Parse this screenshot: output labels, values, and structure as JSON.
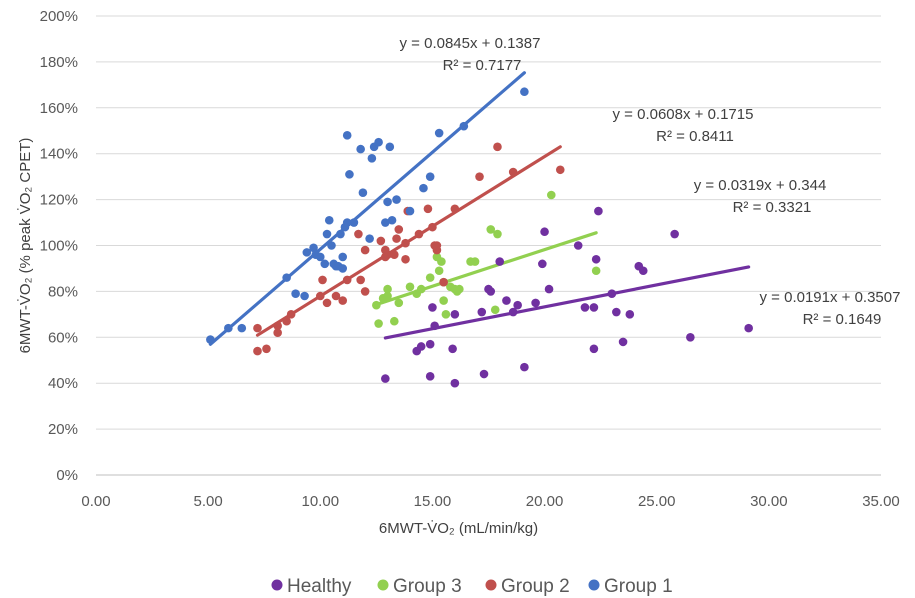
{
  "chart_data": {
    "type": "scatter",
    "xlabel": "6MWT-V̇O₂ (mL/min/kg)",
    "ylabel": "6MWT-V̇O₂ (% peak V̇O₂ CPET)",
    "xlim": [
      0,
      35
    ],
    "ylim": [
      0,
      2
    ],
    "x_ticks": [
      "0.00",
      "5.00",
      "10.00",
      "15.00",
      "20.00",
      "25.00",
      "30.00",
      "35.00"
    ],
    "y_ticks": [
      "0%",
      "20%",
      "40%",
      "60%",
      "80%",
      "100%",
      "120%",
      "140%",
      "160%",
      "180%",
      "200%"
    ],
    "grid": "horizontal",
    "legend_position": "bottom",
    "series": [
      {
        "name": "Healthy",
        "color": "#7030A0",
        "trendline": {
          "slope": 0.0191,
          "intercept": 0.3507,
          "x_range": [
            12.9,
            29.1
          ],
          "equation": "y = 0.0191x + 0.3507",
          "r2": "R² = 0.1649"
        },
        "points": [
          [
            12.9,
            0.42
          ],
          [
            14.3,
            0.54
          ],
          [
            14.5,
            0.56
          ],
          [
            14.9,
            0.57
          ],
          [
            15.1,
            0.65
          ],
          [
            15.0,
            0.73
          ],
          [
            15.9,
            0.55
          ],
          [
            16.0,
            0.7
          ],
          [
            14.9,
            0.43
          ],
          [
            16.0,
            0.4
          ],
          [
            17.2,
            0.71
          ],
          [
            17.3,
            0.44
          ],
          [
            17.5,
            0.81
          ],
          [
            17.6,
            0.8
          ],
          [
            18.0,
            0.93
          ],
          [
            18.3,
            0.76
          ],
          [
            18.6,
            0.71
          ],
          [
            18.8,
            0.74
          ],
          [
            19.1,
            0.47
          ],
          [
            19.6,
            0.75
          ],
          [
            20.0,
            1.06
          ],
          [
            20.2,
            0.81
          ],
          [
            19.9,
            0.92
          ],
          [
            21.5,
            1.0
          ],
          [
            21.8,
            0.73
          ],
          [
            22.3,
            0.94
          ],
          [
            22.4,
            1.15
          ],
          [
            22.2,
            0.73
          ],
          [
            22.2,
            0.55
          ],
          [
            23.0,
            0.79
          ],
          [
            23.2,
            0.71
          ],
          [
            23.5,
            0.58
          ],
          [
            23.8,
            0.7
          ],
          [
            24.2,
            0.91
          ],
          [
            24.4,
            0.89
          ],
          [
            25.8,
            1.05
          ],
          [
            26.5,
            0.6
          ],
          [
            29.1,
            0.64
          ]
        ]
      },
      {
        "name": "Group 3",
        "color": "#92D050",
        "trendline": {
          "slope": 0.0319,
          "intercept": 0.344,
          "x_range": [
            12.5,
            22.3
          ],
          "equation": "y = 0.0319x + 0.344",
          "r2": "R² = 0.3321"
        },
        "points": [
          [
            12.5,
            0.74
          ],
          [
            12.6,
            0.66
          ],
          [
            12.8,
            0.77
          ],
          [
            13.0,
            0.81
          ],
          [
            13.0,
            0.78
          ],
          [
            13.3,
            0.67
          ],
          [
            13.5,
            0.75
          ],
          [
            14.0,
            0.82
          ],
          [
            14.3,
            0.79
          ],
          [
            14.5,
            0.81
          ],
          [
            14.9,
            0.86
          ],
          [
            15.2,
            0.95
          ],
          [
            15.3,
            0.89
          ],
          [
            15.4,
            0.93
          ],
          [
            15.5,
            0.84
          ],
          [
            15.5,
            0.76
          ],
          [
            15.6,
            0.7
          ],
          [
            15.8,
            0.82
          ],
          [
            16.0,
            0.81
          ],
          [
            16.1,
            0.8
          ],
          [
            16.2,
            0.81
          ],
          [
            16.7,
            0.93
          ],
          [
            16.9,
            0.93
          ],
          [
            17.6,
            1.07
          ],
          [
            17.8,
            0.72
          ],
          [
            17.9,
            1.05
          ],
          [
            20.3,
            1.22
          ],
          [
            22.3,
            0.89
          ]
        ]
      },
      {
        "name": "Group 2",
        "color": "#C0504D",
        "trendline": {
          "slope": 0.0608,
          "intercept": 0.1715,
          "x_range": [
            7.2,
            20.7
          ],
          "equation": "y = 0.0608x + 0.1715",
          "r2": "R² = 0.8411"
        },
        "points": [
          [
            7.2,
            0.54
          ],
          [
            7.2,
            0.64
          ],
          [
            7.6,
            0.55
          ],
          [
            8.1,
            0.65
          ],
          [
            8.1,
            0.62
          ],
          [
            8.5,
            0.67
          ],
          [
            8.7,
            0.7
          ],
          [
            10.0,
            0.78
          ],
          [
            10.1,
            0.85
          ],
          [
            10.3,
            0.75
          ],
          [
            10.7,
            0.78
          ],
          [
            11.0,
            0.76
          ],
          [
            11.2,
            0.85
          ],
          [
            11.7,
            1.05
          ],
          [
            11.8,
            0.85
          ],
          [
            12.0,
            0.8
          ],
          [
            12.0,
            0.98
          ],
          [
            12.7,
            1.02
          ],
          [
            12.9,
            0.95
          ],
          [
            12.9,
            0.98
          ],
          [
            13.0,
            0.96
          ],
          [
            13.3,
            0.96
          ],
          [
            13.4,
            1.03
          ],
          [
            13.5,
            1.07
          ],
          [
            13.8,
            1.01
          ],
          [
            13.8,
            0.94
          ],
          [
            13.9,
            1.15
          ],
          [
            14.4,
            1.05
          ],
          [
            14.8,
            1.16
          ],
          [
            15.0,
            1.08
          ],
          [
            15.1,
            1.0
          ],
          [
            15.2,
            0.98
          ],
          [
            15.2,
            1.0
          ],
          [
            15.5,
            0.84
          ],
          [
            16.0,
            1.16
          ],
          [
            17.1,
            1.3
          ],
          [
            17.9,
            1.43
          ],
          [
            18.6,
            1.32
          ],
          [
            20.7,
            1.33
          ]
        ]
      },
      {
        "name": "Group 1",
        "color": "#4472C4",
        "trendline": {
          "slope": 0.0845,
          "intercept": 0.1387,
          "x_range": [
            5.1,
            19.1
          ],
          "equation": "y = 0.0845x + 0.1387",
          "r2": "R² = 0.7177"
        },
        "points": [
          [
            5.1,
            0.59
          ],
          [
            5.9,
            0.64
          ],
          [
            6.5,
            0.64
          ],
          [
            8.5,
            0.86
          ],
          [
            8.9,
            0.79
          ],
          [
            9.3,
            0.78
          ],
          [
            9.4,
            0.97
          ],
          [
            9.7,
            0.99
          ],
          [
            9.8,
            0.96
          ],
          [
            10.0,
            0.95
          ],
          [
            10.2,
            0.92
          ],
          [
            10.3,
            1.05
          ],
          [
            10.4,
            1.11
          ],
          [
            10.5,
            1.0
          ],
          [
            10.6,
            0.92
          ],
          [
            10.7,
            0.91
          ],
          [
            10.8,
            0.91
          ],
          [
            10.9,
            1.05
          ],
          [
            11.0,
            0.9
          ],
          [
            11.0,
            0.95
          ],
          [
            11.1,
            1.08
          ],
          [
            11.2,
            1.1
          ],
          [
            11.2,
            1.48
          ],
          [
            11.3,
            1.31
          ],
          [
            11.5,
            1.1
          ],
          [
            11.8,
            1.42
          ],
          [
            11.9,
            1.23
          ],
          [
            12.2,
            1.03
          ],
          [
            12.3,
            1.38
          ],
          [
            12.4,
            1.43
          ],
          [
            12.6,
            1.45
          ],
          [
            12.9,
            1.1
          ],
          [
            13.0,
            1.19
          ],
          [
            13.1,
            1.43
          ],
          [
            13.2,
            1.11
          ],
          [
            13.4,
            1.2
          ],
          [
            14.0,
            1.15
          ],
          [
            14.6,
            1.25
          ],
          [
            14.9,
            1.3
          ],
          [
            15.3,
            1.49
          ],
          [
            16.4,
            1.52
          ],
          [
            19.1,
            1.67
          ]
        ]
      }
    ],
    "legend_order": [
      "Healthy",
      "Group 3",
      "Group 2",
      "Group 1"
    ]
  }
}
